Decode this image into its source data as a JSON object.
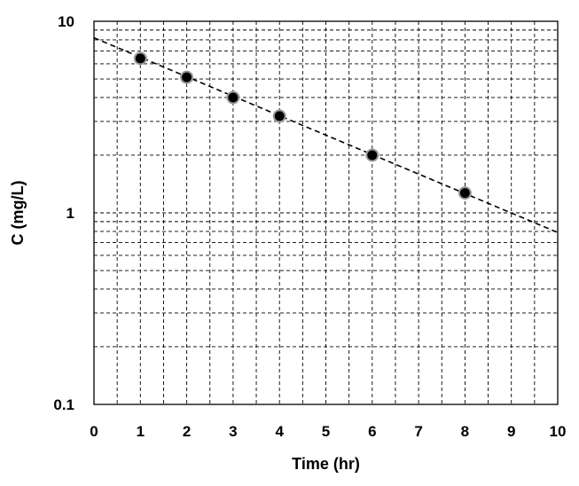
{
  "chart_data": {
    "type": "scatter",
    "title": "",
    "xlabel": "Time (hr)",
    "ylabel": "C (mg/L)",
    "xlim": [
      0,
      10
    ],
    "ylim": [
      0.1,
      10
    ],
    "y_scale": "log",
    "grid": true,
    "grid_style": "dashed",
    "x_ticks": [
      0,
      1,
      2,
      3,
      4,
      5,
      6,
      7,
      8,
      9,
      10
    ],
    "x_tick_labels": [
      "0",
      "1",
      "2",
      "3",
      "4",
      "5",
      "6",
      "7",
      "8",
      "9",
      "10"
    ],
    "x_minor_ticks": [
      0.5,
      1.5,
      2.5,
      3.5,
      4.5,
      5.5,
      6.5,
      7.5,
      8.5,
      9.5
    ],
    "y_ticks": [
      0.1,
      1,
      10
    ],
    "y_tick_labels": [
      "0.1",
      "1",
      "10"
    ],
    "series": [
      {
        "type": "scatter",
        "marker_color": "#000000",
        "points": [
          {
            "x": 1,
            "y": 6.4
          },
          {
            "x": 2,
            "y": 5.1
          },
          {
            "x": 3,
            "y": 4.0
          },
          {
            "x": 4,
            "y": 3.2
          },
          {
            "x": 6,
            "y": 2.0
          },
          {
            "x": 8,
            "y": 1.27
          }
        ]
      },
      {
        "type": "line",
        "line_style": "dashed",
        "line_color": "#000000",
        "points": [
          {
            "x": 0,
            "y": 8.2
          },
          {
            "x": 10,
            "y": 0.79
          }
        ]
      }
    ]
  }
}
